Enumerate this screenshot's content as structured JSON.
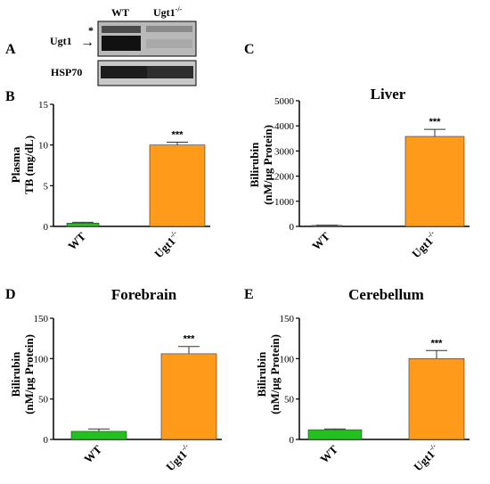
{
  "colors": {
    "wt": "#22c21e",
    "ugt1": "#ff9a1a",
    "axis": "#000000"
  },
  "western_blot": {
    "panel_letter": "A",
    "col_wt": "WT",
    "col_ugt1": "Ugt1",
    "col_ugt1_sup": "-/-",
    "row_ugt1": "Ugt1",
    "row_hsp70": "HSP70",
    "nonspecific_marker": "*",
    "arrow": "→"
  },
  "chart_data": [
    {
      "id": "B",
      "panel_letter": "B",
      "type": "bar",
      "title": "",
      "ylabel_lines": [
        "Plasma",
        "TB (mg/dL)"
      ],
      "categories": [
        "WT",
        "Ugt1"
      ],
      "category_sup": [
        "",
        "-/-"
      ],
      "values": [
        0.4,
        10.0
      ],
      "errors": [
        0.1,
        0.35
      ],
      "ylim": [
        0,
        15
      ],
      "yticks": [
        0,
        5,
        10,
        15
      ],
      "significance": [
        "",
        "***"
      ]
    },
    {
      "id": "C",
      "panel_letter": "C",
      "type": "bar",
      "title": "Liver",
      "ylabel_lines": [
        "Bilirubin",
        "(nM/μg Protein)"
      ],
      "categories": [
        "WT",
        "Ugt1"
      ],
      "category_sup": [
        "",
        "-/-"
      ],
      "values": [
        40,
        3580
      ],
      "errors": [
        10,
        280
      ],
      "ylim": [
        0,
        5000
      ],
      "yticks": [
        0,
        1000,
        2000,
        3000,
        4000,
        5000
      ],
      "significance": [
        "",
        "***"
      ]
    },
    {
      "id": "D",
      "panel_letter": "D",
      "type": "bar",
      "title": "Forebrain",
      "ylabel_lines": [
        "Bilirubin",
        "(nM/μg Protein)"
      ],
      "categories": [
        "WT",
        "Ugt1"
      ],
      "category_sup": [
        "",
        "-/-"
      ],
      "values": [
        10,
        106
      ],
      "errors": [
        3,
        9
      ],
      "ylim": [
        0,
        150
      ],
      "yticks": [
        0,
        50,
        100,
        150
      ],
      "significance": [
        "",
        "***"
      ]
    },
    {
      "id": "E",
      "panel_letter": "E",
      "type": "bar",
      "title": "Cerebellum",
      "ylabel_lines": [
        "Bilirubin",
        "(nM/μg Protein)"
      ],
      "categories": [
        "WT",
        "Ugt1"
      ],
      "category_sup": [
        "",
        "-/-"
      ],
      "values": [
        12,
        100
      ],
      "errors": [
        1,
        10
      ],
      "ylim": [
        0,
        150
      ],
      "yticks": [
        0,
        50,
        100,
        150
      ],
      "significance": [
        "",
        "***"
      ]
    }
  ]
}
